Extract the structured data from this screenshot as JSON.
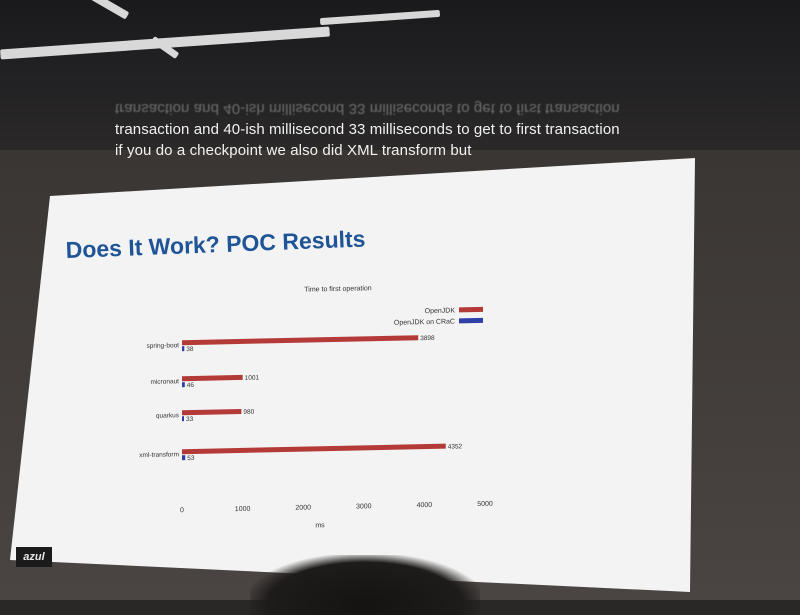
{
  "captions": {
    "mirrored_line": "transaction and 40-ish millisecond 33 milliseconds to get to first transaction",
    "line1": "transaction and 40-ish millisecond 33 milliseconds to get to first transaction",
    "line2": "if you do a checkpoint we also did XML transform but"
  },
  "slide": {
    "title": "Does It Work? POC Results",
    "logo_text": "azul",
    "title_color": "#1f5597",
    "background": "#f3f4f3"
  },
  "chart_data": {
    "type": "bar",
    "orientation": "horizontal",
    "title": "Time to first operation",
    "xlabel": "ms",
    "ylabel": "",
    "categories": [
      "spring-boot",
      "micronaut",
      "quarkus",
      "xml-transform"
    ],
    "series": [
      {
        "name": "OpenJDK",
        "color": "#b33a36",
        "values": [
          3898,
          1001,
          980,
          4352
        ],
        "labels": [
          "3898",
          "1001",
          "980",
          "4352"
        ]
      },
      {
        "name": "OpenJDK on CRaC",
        "color": "#2f3fa8",
        "values": [
          38,
          46,
          33,
          53
        ],
        "labels": [
          "38",
          "46",
          "33",
          "53"
        ]
      }
    ],
    "xlim": [
      0,
      5000
    ],
    "xticks": [
      "0",
      "1000",
      "2000",
      "3000",
      "4000",
      "5000"
    ],
    "legend": "top-right",
    "grid": false
  }
}
